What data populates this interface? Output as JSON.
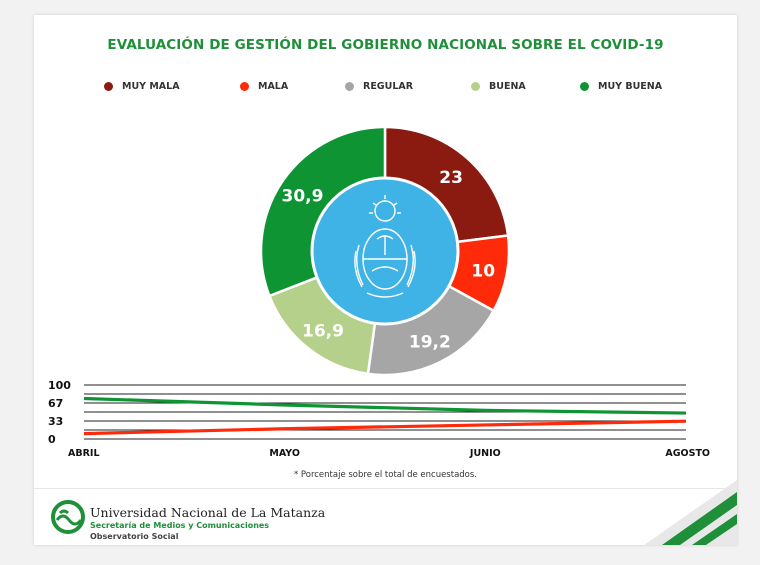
{
  "colors": {
    "muy_mala": "#8b1a10",
    "mala": "#ff2a0a",
    "regular": "#a6a6a6",
    "buena": "#b4d08a",
    "muy_buena": "#0f9434",
    "accent": "#1f8f3a",
    "center": "#3fb3e6"
  },
  "chart_data": [
    {
      "type": "pie",
      "title": "EVALUACIÓN DE GESTIÓN DEL GOBIERNO NACIONAL SOBRE EL COVID-19",
      "legend_position": "top",
      "categories": [
        "MUY MALA",
        "MALA",
        "REGULAR",
        "BUENA",
        "MUY BUENA"
      ],
      "values": [
        23,
        10,
        19.2,
        16.9,
        30.9
      ],
      "value_labels": [
        "23",
        "10",
        "19,2",
        "16,9",
        "30,9"
      ]
    },
    {
      "type": "line",
      "categories": [
        "ABRIL",
        "MAYO",
        "JUNIO",
        "AGOSTO"
      ],
      "yticks": [
        "100",
        "67",
        "33",
        "0"
      ],
      "ylim": [
        0,
        100
      ],
      "grid": true,
      "series": [
        {
          "values": [
            75,
            63,
            53,
            48
          ],
          "color": "#0f9434"
        },
        {
          "values": [
            10,
            19,
            26,
            33
          ],
          "color": "#ff2a0a"
        }
      ]
    }
  ],
  "note": "* Porcentaje sobre el total de encuestados.",
  "footer": {
    "university": "Universidad Nacional de La Matanza",
    "secretary": "Secretaría de Medios y Comunicaciones",
    "observatory": "Observatorio Social"
  }
}
